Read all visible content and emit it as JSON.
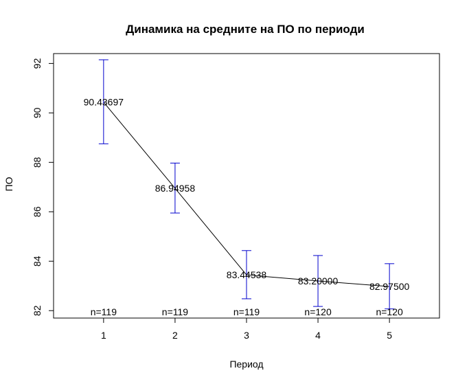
{
  "chart_data": {
    "type": "line",
    "title": "Динамика на средните на ПО по периоди",
    "xlabel": "Период",
    "ylabel": "ПО",
    "x": [
      1,
      2,
      3,
      4,
      5
    ],
    "x_ticks": [
      "1",
      "2",
      "3",
      "4",
      "5"
    ],
    "y_ticks": [
      "82",
      "84",
      "86",
      "88",
      "90",
      "92"
    ],
    "xlim": [
      0.3,
      5.7
    ],
    "ylim": [
      81.7,
      92.4
    ],
    "means": [
      90.43697,
      86.94958,
      83.44538,
      83.2,
      82.975
    ],
    "mean_labels": [
      "90.43697",
      "86.94958",
      "83.44538",
      "83.20000",
      "82.97500"
    ],
    "ci_upper": [
      92.15,
      87.97,
      84.43,
      84.23,
      83.9
    ],
    "ci_lower": [
      88.75,
      85.95,
      82.48,
      82.17,
      82.07
    ],
    "n_labels": [
      "n=119",
      "n=119",
      "n=119",
      "n=120",
      "n=120"
    ],
    "n_label_y": 81.95,
    "grid": false,
    "colors": {
      "line": "#000000",
      "error_bars": "#0000cd",
      "box": "#000000"
    }
  }
}
